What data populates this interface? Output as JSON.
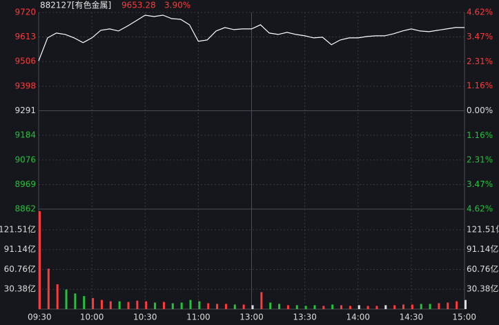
{
  "chart_data": {
    "type": "line",
    "title": "882127[有色金属]",
    "last_price": 9653.28,
    "change": {
      "value": 3.9,
      "label": "3.90%"
    },
    "x": [
      "09:30",
      "09:35",
      "09:40",
      "09:45",
      "09:50",
      "09:55",
      "10:00",
      "10:05",
      "10:10",
      "10:15",
      "10:20",
      "10:25",
      "10:30",
      "10:35",
      "10:40",
      "10:45",
      "10:50",
      "10:55",
      "11:00",
      "11:05",
      "11:10",
      "11:15",
      "11:20",
      "11:25",
      "11:30",
      "13:05",
      "13:10",
      "13:15",
      "13:20",
      "13:25",
      "13:30",
      "13:35",
      "13:40",
      "13:45",
      "13:50",
      "13:55",
      "14:00",
      "14:05",
      "14:10",
      "14:15",
      "14:20",
      "14:25",
      "14:30",
      "14:35",
      "14:40",
      "14:45",
      "14:50",
      "14:55",
      "15:00"
    ],
    "series": [
      {
        "color": "#ffffff",
        "values": [
          9509,
          9609,
          9630,
          9624,
          9609,
          9588,
          9609,
          9642,
          9648,
          9639,
          9660,
          9684,
          9708,
          9702,
          9708,
          9693,
          9690,
          9666,
          9594,
          9600,
          9639,
          9654,
          9645,
          9648,
          9648,
          9666,
          9630,
          9624,
          9633,
          9624,
          9618,
          9609,
          9612,
          9579,
          9600,
          9609,
          9609,
          9615,
          9618,
          9618,
          9627,
          9639,
          9648,
          9639,
          9636,
          9642,
          9648,
          9654,
          9654
        ]
      }
    ],
    "ylim": [
      8862,
      9720
    ],
    "yticks": [
      9720,
      9613,
      9506,
      9398,
      9291,
      9184,
      9076,
      8969,
      8862
    ],
    "y2lim": [
      -4.62,
      4.62
    ],
    "y2ticks": [
      {
        "value": 4.62,
        "label": "4.62%"
      },
      {
        "value": 3.47,
        "label": "3.47%"
      },
      {
        "value": 2.31,
        "label": "2.31%"
      },
      {
        "value": 1.16,
        "label": "1.16%"
      },
      {
        "value": 0,
        "label": "0.00%"
      },
      {
        "value": -1.16,
        "label": "1.16%"
      },
      {
        "value": -2.31,
        "label": "2.31%"
      },
      {
        "value": -3.47,
        "label": "3.47%"
      },
      {
        "value": -4.62,
        "label": "4.62%"
      }
    ],
    "xticks": [
      "09:30",
      "10:00",
      "10:30",
      "11:00",
      "13:00",
      "13:30",
      "14:00",
      "14:30",
      "15:00"
    ],
    "up_color": "#ff3b3b",
    "down_color": "#22c43a",
    "flat_color": "#dddddd",
    "volume": {
      "values": [
        150,
        62,
        38,
        30,
        24,
        20,
        17,
        14,
        12,
        12,
        11,
        13,
        12,
        10,
        11,
        9,
        10,
        14,
        12,
        9,
        8,
        8,
        7,
        7,
        6,
        26,
        10,
        8,
        6,
        6,
        5,
        6,
        5,
        7,
        6,
        5,
        6,
        5,
        5,
        6,
        6,
        7,
        7,
        8,
        8,
        9,
        10,
        12,
        14
      ],
      "ylim": [
        0,
        153.2
      ],
      "yticks": [
        {
          "value": 121.51,
          "label": "121.51亿"
        },
        {
          "value": 91.14,
          "label": "91.14亿"
        },
        {
          "value": 60.76,
          "label": "60.76亿"
        },
        {
          "value": 30.38,
          "label": "30.38亿"
        }
      ]
    }
  }
}
